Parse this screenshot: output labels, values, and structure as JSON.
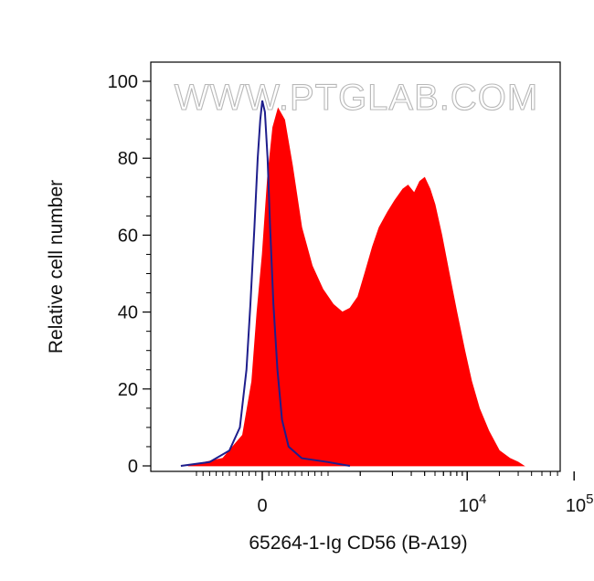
{
  "watermark": "WWW.PTGLAB.COM",
  "chart_data": {
    "type": "area",
    "title": "",
    "xlabel": "65264-1-Ig CD56 (B-A19)",
    "ylabel": "Relative cell number",
    "x_scale": "biexponential",
    "ylim": [
      0,
      100
    ],
    "yticks": [
      0,
      20,
      40,
      60,
      80,
      100
    ],
    "xticks": [
      {
        "value": 0,
        "base": "0",
        "exp": ""
      },
      {
        "value": 10000,
        "base": "10",
        "exp": "4"
      },
      {
        "value": 100000,
        "base": "10",
        "exp": "5"
      }
    ],
    "grid": false,
    "series": [
      {
        "color": "#ff0000",
        "style": "filled",
        "points": [
          [
            -600,
            0
          ],
          [
            -300,
            2
          ],
          [
            -150,
            8
          ],
          [
            -80,
            22
          ],
          [
            -40,
            40
          ],
          [
            0,
            55
          ],
          [
            40,
            75
          ],
          [
            80,
            88
          ],
          [
            120,
            93
          ],
          [
            170,
            90
          ],
          [
            230,
            78
          ],
          [
            300,
            62
          ],
          [
            380,
            52
          ],
          [
            460,
            46
          ],
          [
            560,
            42
          ],
          [
            680,
            40
          ],
          [
            800,
            41
          ],
          [
            950,
            44
          ],
          [
            1100,
            50
          ],
          [
            1300,
            57
          ],
          [
            1500,
            62
          ],
          [
            1800,
            66
          ],
          [
            2100,
            69
          ],
          [
            2500,
            72
          ],
          [
            2800,
            73
          ],
          [
            3200,
            71
          ],
          [
            3600,
            74
          ],
          [
            4000,
            75
          ],
          [
            4500,
            72
          ],
          [
            5000,
            68
          ],
          [
            5800,
            60
          ],
          [
            6800,
            50
          ],
          [
            8000,
            40
          ],
          [
            9500,
            30
          ],
          [
            11000,
            22
          ],
          [
            13000,
            15
          ],
          [
            16000,
            9
          ],
          [
            20000,
            4
          ],
          [
            25000,
            2
          ],
          [
            30000,
            1
          ],
          [
            34000,
            0
          ]
        ]
      },
      {
        "color": "#1e1e8c",
        "style": "outline",
        "points": [
          [
            -700,
            0
          ],
          [
            -400,
            1
          ],
          [
            -250,
            4
          ],
          [
            -170,
            10
          ],
          [
            -120,
            25
          ],
          [
            -90,
            42
          ],
          [
            -60,
            62
          ],
          [
            -35,
            80
          ],
          [
            -15,
            90
          ],
          [
            0,
            95
          ],
          [
            20,
            92
          ],
          [
            40,
            80
          ],
          [
            60,
            62
          ],
          [
            85,
            42
          ],
          [
            115,
            25
          ],
          [
            150,
            12
          ],
          [
            200,
            5
          ],
          [
            300,
            2
          ],
          [
            500,
            1
          ],
          [
            800,
            0
          ]
        ]
      }
    ]
  }
}
